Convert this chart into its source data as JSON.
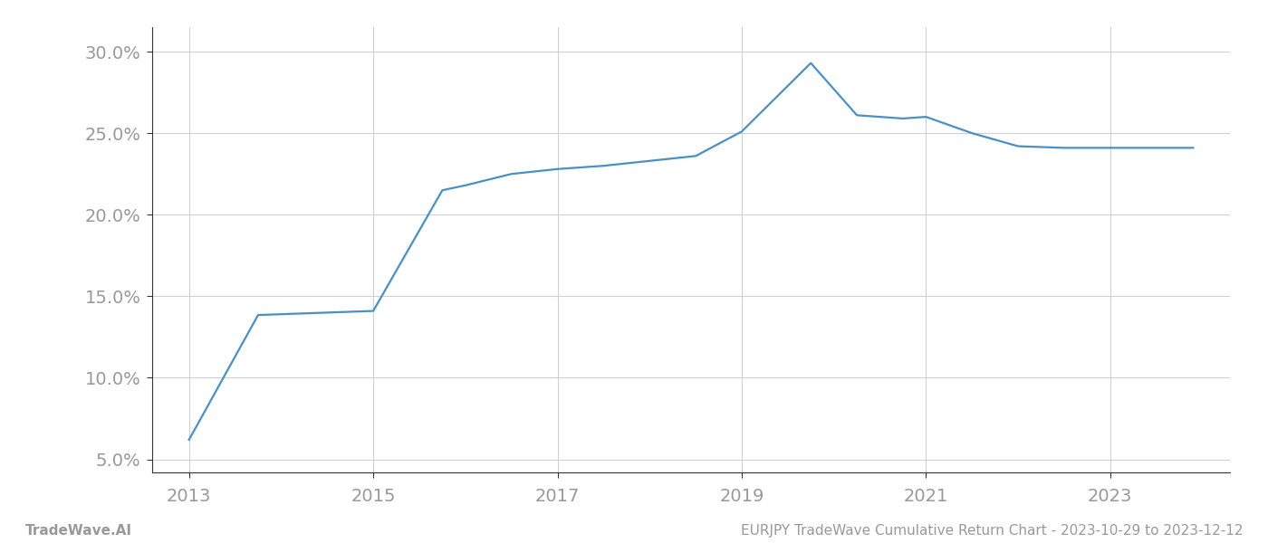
{
  "x_years": [
    2013.0,
    2013.75,
    2014.0,
    2014.5,
    2015.0,
    2015.75,
    2016.0,
    2016.5,
    2017.0,
    2017.5,
    2018.0,
    2018.5,
    2019.0,
    2019.75,
    2020.25,
    2020.75,
    2021.0,
    2021.5,
    2022.0,
    2022.5,
    2023.0,
    2023.9
  ],
  "y_values": [
    6.2,
    13.85,
    13.9,
    14.0,
    14.1,
    21.5,
    21.8,
    22.5,
    22.8,
    23.0,
    23.3,
    23.6,
    25.1,
    29.3,
    26.1,
    25.9,
    26.0,
    25.0,
    24.2,
    24.1,
    24.1,
    24.1
  ],
  "line_color": "#4a90c4",
  "line_width": 1.6,
  "xlim": [
    2012.6,
    2024.3
  ],
  "ylim": [
    4.2,
    31.5
  ],
  "yticks": [
    5.0,
    10.0,
    15.0,
    20.0,
    25.0,
    30.0
  ],
  "xticks": [
    2013,
    2015,
    2017,
    2019,
    2021,
    2023
  ],
  "grid_color": "#d0d0d0",
  "background_color": "#ffffff",
  "footer_left": "TradeWave.AI",
  "footer_right": "EURJPY TradeWave Cumulative Return Chart - 2023-10-29 to 2023-12-12",
  "tick_label_color": "#999999",
  "footer_color": "#999999",
  "figsize": [
    14.0,
    6.0
  ],
  "dpi": 100
}
